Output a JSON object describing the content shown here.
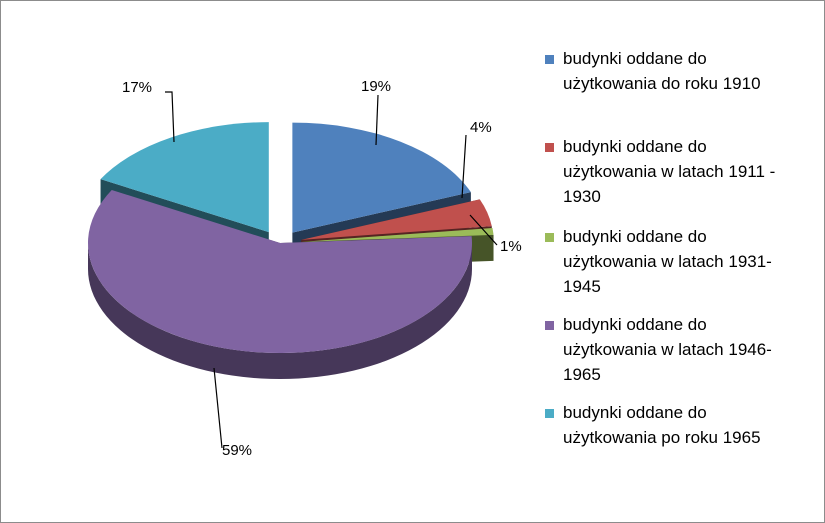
{
  "chart_data": {
    "type": "pie",
    "series": [
      {
        "name": "budynki oddane do użytkowania do roku 1910",
        "value": 19,
        "label": "19%",
        "color": "#4f81bd"
      },
      {
        "name": "budynki oddane do użytkowania w latach 1911 - 1930",
        "value": 4,
        "label": "4%",
        "color": "#c0504d"
      },
      {
        "name": "budynki oddane do użytkowania w latach 1931-1945",
        "value": 1,
        "label": "1%",
        "color": "#9bbb59"
      },
      {
        "name": "budynki oddane do użytkowania w latach 1946-1965",
        "value": 59,
        "label": "59%",
        "color": "#8064a2"
      },
      {
        "name": "budynki oddane do użytkowania po roku 1965",
        "value": 17,
        "label": "17%",
        "color": "#4bacc6"
      }
    ],
    "legend_position": "right",
    "style": "3d-exploded"
  },
  "legend": {
    "lines": [
      [
        "budynki oddane do",
        "użytkowania do roku 1910"
      ],
      [
        "budynki oddane do",
        "użytkowania w latach 1911 -",
        "1930"
      ],
      [
        "budynki oddane do",
        "użytkowania w latach 1931-",
        "1945"
      ],
      [
        "budynki oddane do",
        "użytkowania w latach 1946-",
        "1965"
      ],
      [
        "budynki oddane do",
        "użytkowania po roku 1965"
      ]
    ]
  }
}
